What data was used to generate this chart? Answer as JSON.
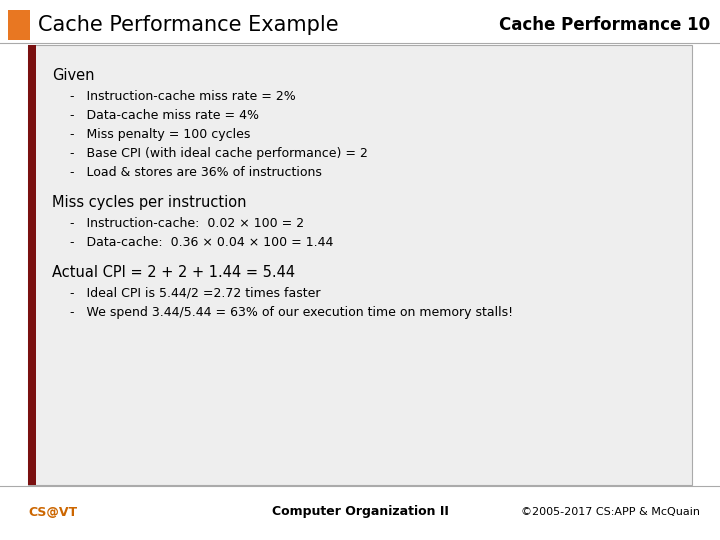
{
  "title_left": "Cache Performance Example",
  "title_right": "Cache Performance 10",
  "section1_header": "Given",
  "section1_items": [
    "Instruction-cache miss rate = 2%",
    "Data-cache miss rate = 4%",
    "Miss penalty = 100 cycles",
    "Base CPI (with ideal cache performance) = 2",
    "Load & stores are 36% of instructions"
  ],
  "section2_header": "Miss cycles per instruction",
  "section2_items": [
    "Instruction-cache:  0.02 × 100 = 2",
    "Data-cache:  0.36 × 0.04 × 100 = 1.44"
  ],
  "section3_header": "Actual CPI = 2 + 2 + 1.44 = 5.44",
  "section3_items": [
    "Ideal CPI is 5.44/2 =2.72 times faster",
    "We spend 3.44/5.44 = 63% of our execution time on memory stalls!"
  ],
  "footer_left": "CS@VT",
  "footer_center": "Computer Organization II",
  "footer_right": "©2005-2017 CS:APP & McQuain",
  "orange_color": "#e87722",
  "dark_red_color": "#7a1010",
  "text_color": "#000000",
  "content_bg": "#eeeeee",
  "white_bg": "#ffffff",
  "footer_text_color": "#000000",
  "cs_vt_color": "#cc6600"
}
